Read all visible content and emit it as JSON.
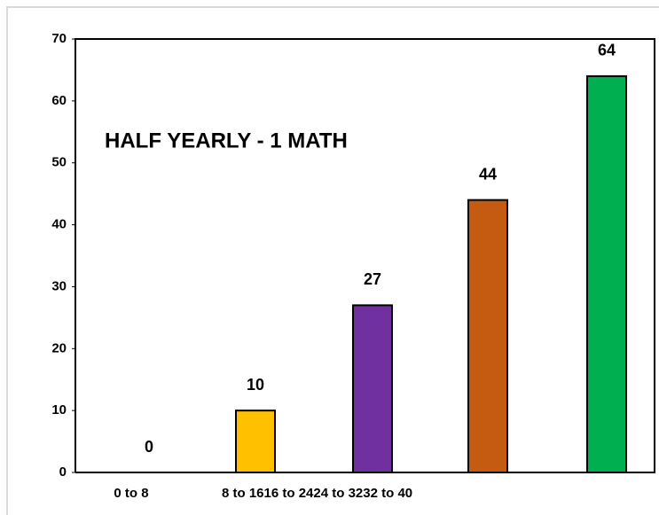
{
  "chart_data": {
    "type": "bar",
    "title": "HALF YEARLY - 1 MATH",
    "categories": [
      "0 to 8",
      "8 to 16",
      "16 to 24",
      "24 to 32",
      "32 to 40"
    ],
    "values": [
      0,
      10,
      27,
      44,
      64
    ],
    "colors": [
      "#4472c4",
      "#ffc000",
      "#7030a0",
      "#c55a11",
      "#00b050"
    ],
    "ylim": [
      0,
      70
    ],
    "yticks": [
      0,
      10,
      20,
      30,
      40,
      50,
      60,
      70
    ],
    "grid": false
  }
}
